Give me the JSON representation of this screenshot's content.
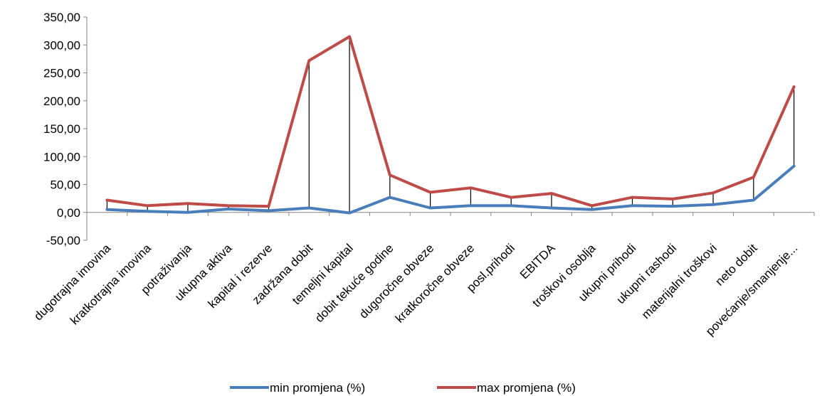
{
  "chart_data": {
    "type": "line",
    "categories": [
      "dugotrajna imovina",
      "kratkotrajna imovina",
      "potraživanja",
      "ukupna aktiva",
      "kapital i rezerve",
      "zadržana dobit",
      "temeljni kapital",
      "dobit tekuće godine",
      "dugoročne obveze",
      "kratkoročne obveze",
      "posl.prihodi",
      "EBITDA",
      "troškovi osoblja",
      "ukupni prihodi",
      "ukupni rashodi",
      "materijalni troškovi",
      "neto dobit",
      "povećanje/smanjenje..."
    ],
    "series": [
      {
        "name": "min promjena (%)",
        "color": "#4a7ebb",
        "values": [
          5,
          2,
          0,
          6,
          3,
          8,
          -1,
          27,
          8,
          12,
          12,
          8,
          5,
          12,
          11,
          14,
          22,
          83
        ]
      },
      {
        "name": "max promjena (%)",
        "color": "#be4b48",
        "values": [
          22,
          12,
          16,
          12,
          11,
          272,
          315,
          67,
          36,
          44,
          27,
          34,
          12,
          27,
          24,
          35,
          63,
          225
        ]
      }
    ],
    "ylim": [
      -50,
      350
    ],
    "yticks": [
      -50,
      0,
      50,
      100,
      150,
      200,
      250,
      300,
      350
    ],
    "ytick_labels": [
      "-50,00",
      "0,00",
      "50,00",
      "100,00",
      "150,00",
      "200,00",
      "250,00",
      "300,00",
      "350,00"
    ],
    "drop_lines": true,
    "legend_position": "bottom",
    "grid": false,
    "title": "",
    "xlabel": "",
    "ylabel": ""
  }
}
